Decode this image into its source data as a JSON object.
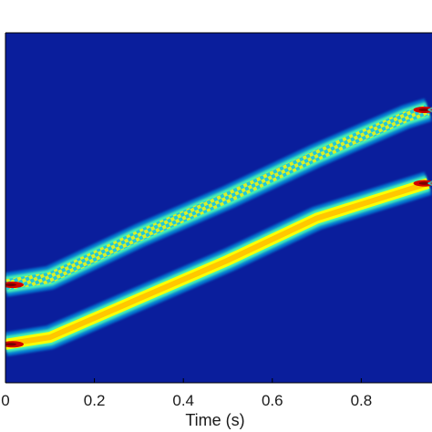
{
  "chart_data": {
    "type": "heatmap",
    "colormap": "jet",
    "background_color": "#0a1e9c",
    "xlabel": "Time (s)",
    "xlim": [
      0,
      1
    ],
    "x_ticks": [
      0,
      0.2,
      0.4,
      0.6,
      0.8
    ],
    "x_tick_labels": [
      "0",
      "0.2",
      "0.4",
      "0.6",
      "0.8"
    ],
    "ylim": [
      0,
      1
    ],
    "series": [
      {
        "kind": "chirp-ridge",
        "x": [
          0.0,
          0.1,
          0.3,
          0.5,
          0.7,
          0.9,
          0.95
        ],
        "y": [
          0.28,
          0.3,
          0.42,
          0.53,
          0.65,
          0.76,
          0.78
        ],
        "intensity": [
          1.0,
          0.9,
          0.75,
          0.75,
          0.75,
          0.8,
          1.0
        ],
        "texture": "checkered"
      },
      {
        "kind": "chirp-ridge",
        "x": [
          0.0,
          0.1,
          0.3,
          0.5,
          0.7,
          0.9,
          0.95
        ],
        "y": [
          0.11,
          0.13,
          0.24,
          0.35,
          0.47,
          0.55,
          0.57
        ],
        "intensity": [
          1.0,
          0.9,
          0.8,
          0.8,
          0.8,
          0.85,
          1.0
        ],
        "texture": "smooth"
      }
    ]
  }
}
